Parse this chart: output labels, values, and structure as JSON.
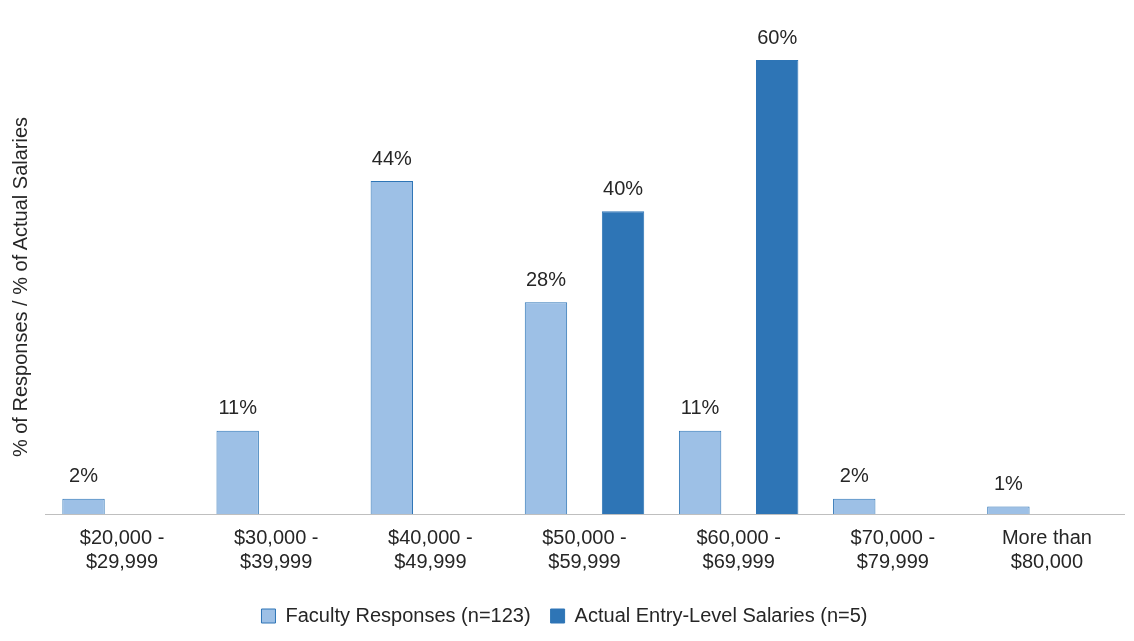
{
  "chart_data": {
    "type": "bar",
    "ylabel": "% of Responses / % of Actual Salaries",
    "categories": [
      "$20,000 - $29,999",
      "$30,000 - $39,999",
      "$40,000 - $49,999",
      "$50,000 - $59,999",
      "$60,000 - $69,999",
      "$70,000 - $79,999",
      "More than $80,000"
    ],
    "series": [
      {
        "name": "Faculty Responses (n=123)",
        "color": "#9dc0e6",
        "values": [
          2,
          11,
          44,
          28,
          11,
          2,
          1
        ],
        "value_labels": [
          "2%",
          "11%",
          "44%",
          "28%",
          "11%",
          "2%",
          "1%"
        ]
      },
      {
        "name": "Actual Entry-Level Salaries (n=5)",
        "color": "#2e75b6",
        "values": [
          null,
          null,
          null,
          40,
          60,
          null,
          null
        ],
        "value_labels": [
          null,
          null,
          null,
          "40%",
          "60%",
          null,
          null
        ]
      }
    ],
    "legend": "bottom",
    "grid": false
  }
}
